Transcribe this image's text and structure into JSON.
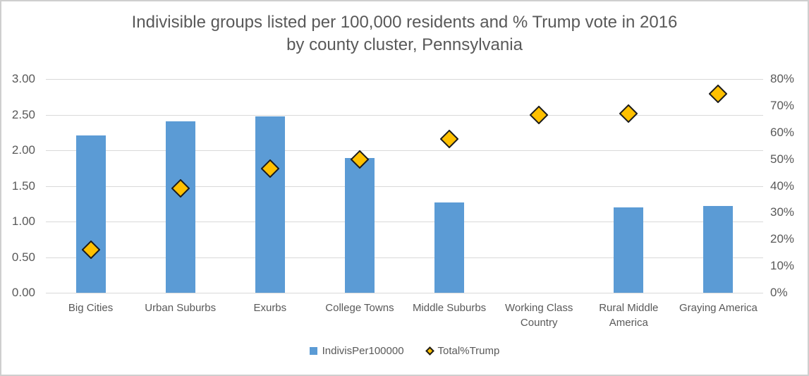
{
  "chart_data": {
    "type": "combo-bar-scatter",
    "title_line1": "Indivisible groups listed per 100,000 residents and % Trump vote in 2016",
    "title_line2": "by county cluster, Pennsylvania",
    "categories": [
      "Big Cities",
      "Urban Suburbs",
      "Exurbs",
      "College Towns",
      "Middle Suburbs",
      "Working Class Country",
      "Rural Middle America",
      "Graying America"
    ],
    "series": [
      {
        "name": "IndivisPer100000",
        "type": "bar",
        "axis": "left",
        "color": "#5B9BD5",
        "values": [
          2.21,
          2.41,
          2.48,
          1.89,
          1.27,
          0,
          1.2,
          1.22
        ]
      },
      {
        "name": "Total%Trump",
        "type": "scatter",
        "marker": "diamond",
        "axis": "right",
        "color": "#FFC000",
        "outline_color": "#1C1C1C",
        "values_pct": [
          16,
          39,
          46.5,
          50,
          57.5,
          66.5,
          67,
          74.5
        ]
      }
    ],
    "left_axis": {
      "min": 0,
      "max": 3,
      "step": 0.5,
      "tick_format": "0.00"
    },
    "right_axis": {
      "min": 0,
      "max": 80,
      "step": 10,
      "suffix": "%"
    },
    "grid": true,
    "gridline_color": "#D9D9D9",
    "text_color": "#595959",
    "legend_position": "bottom"
  }
}
